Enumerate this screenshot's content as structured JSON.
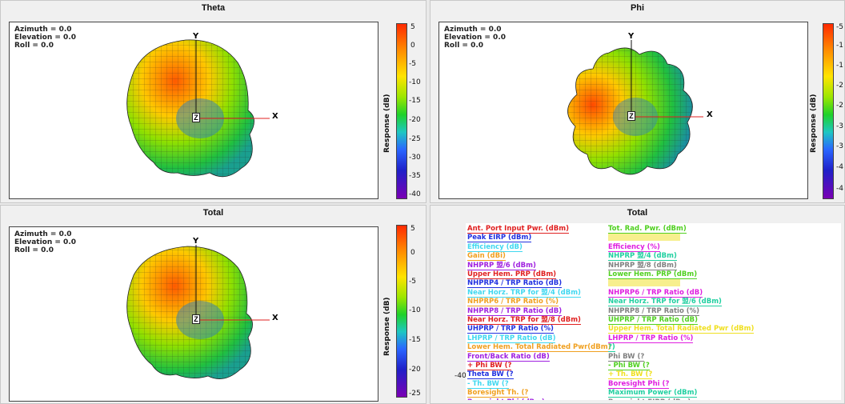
{
  "panels": {
    "theta": {
      "title": "Theta"
    },
    "phi": {
      "title": "Phi"
    },
    "total_plot": {
      "title": "Total"
    },
    "total_list": {
      "title": "Total"
    }
  },
  "orientation": {
    "azimuth": "Azimuth = 0.0",
    "elevation": "Elevation = 0.0",
    "roll": "Roll = 0.0"
  },
  "axes": {
    "x": "X",
    "y": "Y",
    "z": "Z"
  },
  "colorbar": {
    "label": "Response (dB)",
    "theta_ticks": [
      "5",
      "0",
      "-5",
      "-10",
      "-15",
      "-20",
      "-25",
      "-30",
      "-35",
      "-40"
    ],
    "phi_ticks": [
      "-5",
      "-1",
      "-1",
      "-2",
      "-2",
      "-3",
      "-3",
      "-4",
      "-4"
    ],
    "total_ticks": [
      "5",
      "0",
      "-5",
      "-10",
      "-15",
      "-20",
      "-25"
    ],
    "colors": [
      "#ff2a00",
      "#ffe400",
      "#1fd12a",
      "#2a66ff",
      "#7a00b4"
    ]
  },
  "list_side_value": "-40",
  "metrics_left": [
    {
      "text": "Ant. Port Input Pwr. (dBm)",
      "color": "#e02020"
    },
    {
      "text": "Peak EIRP (dBm)",
      "color": "#2030e0"
    },
    {
      "text": "Efficiency (dB)",
      "color": "#40d8f0"
    },
    {
      "text": "Gain (dBi)",
      "color": "#f0a020"
    },
    {
      "text": "NHPRP 盟/6 (dBm)",
      "color": "#a020e0"
    },
    {
      "text": "Upper Hem. PRP (dBm)",
      "color": "#e02020"
    },
    {
      "text": "NHPRP4 / TRP Ratio (dB)",
      "color": "#2030e0"
    },
    {
      "text": "Near Horz. TRP for 盟/4 (dBm)",
      "color": "#40d8f0"
    },
    {
      "text": "NHPRP6 / TRP Ratio (%)",
      "color": "#f0a020"
    },
    {
      "text": "NHPRP8 / TRP Ratio (dB)",
      "color": "#a020e0"
    },
    {
      "text": "Near Horz. TRP for 盟/8 (dBm)",
      "color": "#e02020"
    },
    {
      "text": "UHPRP / TRP Ratio (%)",
      "color": "#2030e0"
    },
    {
      "text": "LHPRP / TRP Ratio (dB)",
      "color": "#40d8f0"
    },
    {
      "text": "Lower Hem. Total Radiated Pwr(dBm)",
      "color": "#f0a020"
    },
    {
      "text": "Front/Back Ratio (dB)",
      "color": "#a020e0"
    },
    {
      "text": "+ Phi BW (?",
      "color": "#e02020"
    },
    {
      "text": "Theta BW (?",
      "color": "#2030e0"
    },
    {
      "text": "- Th. BW (?",
      "color": "#40d8f0"
    },
    {
      "text": "Boresight Th. (?",
      "color": "#f0a020"
    },
    {
      "text": "Boresight Phi (dBm)",
      "color": "#a020e0"
    }
  ],
  "metrics_right": [
    {
      "text": "Tot. Rad. Pwr. (dBm)",
      "color": "#50d020"
    },
    {
      "text": "",
      "color": "#f0e020"
    },
    {
      "text": "Efficiency (%)",
      "color": "#e020e0"
    },
    {
      "text": "NHPRP 盟/4 (dBm)",
      "color": "#20d0a0"
    },
    {
      "text": "NHPRP 盟/8 (dBm)",
      "color": "#808080"
    },
    {
      "text": "Lower Hem. PRP (dBm)",
      "color": "#50d020"
    },
    {
      "text": "",
      "color": "#f0e020"
    },
    {
      "text": "NHPRP6 / TRP Ratio (dB)",
      "color": "#e020e0"
    },
    {
      "text": "Near Horz. TRP for 盟/6 (dBm)",
      "color": "#20d0a0"
    },
    {
      "text": "NHPRP8 / TRP Ratio (%)",
      "color": "#808080"
    },
    {
      "text": "UHPRP / TRP Ratio (dB)",
      "color": "#50d020"
    },
    {
      "text": "Upper Hem. Total Radiated Pwr (dBm)",
      "color": "#f0e020"
    },
    {
      "text": "LHPRP / TRP Ratio (%)",
      "color": "#e020e0"
    },
    {
      "text": "?)",
      "color": "#20d0a0"
    },
    {
      "text": "Phi BW (?",
      "color": "#808080"
    },
    {
      "text": "- Phi BW (?",
      "color": "#50d020"
    },
    {
      "text": "+ Th. BW (?",
      "color": "#f0e020"
    },
    {
      "text": "Boresight Phi (?",
      "color": "#e020e0"
    },
    {
      "text": "Maximum Power (dBm)",
      "color": "#20d0a0"
    },
    {
      "text": "Boresight EIRP (dBm)",
      "color": "#808080"
    }
  ]
}
